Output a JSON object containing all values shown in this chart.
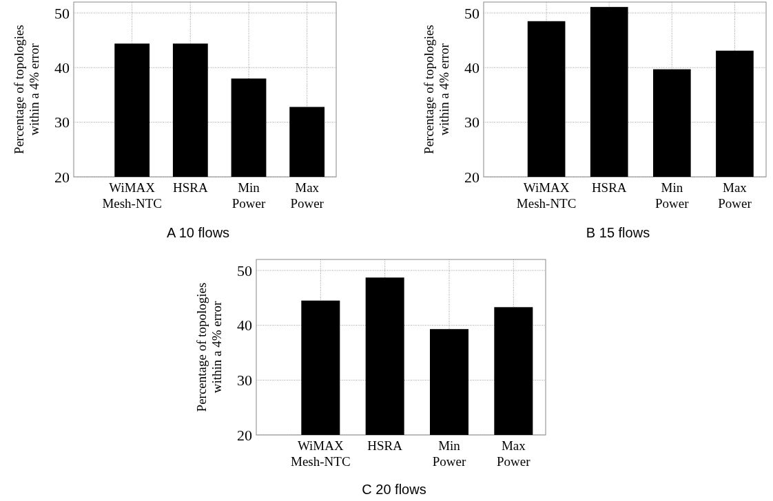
{
  "chart_data": [
    {
      "type": "bar",
      "title": "A  10 flows",
      "ylabel": "Percentage of topologies\nwithin a 4% error",
      "categories": [
        "WiMAX\nMesh-NTC",
        "HSRA",
        "Min\nPower",
        "Max\nPower"
      ],
      "values": [
        44.4,
        44.4,
        38.0,
        32.8
      ],
      "color": "#000000",
      "ylim": [
        20,
        52
      ],
      "yticks": [
        20,
        30,
        40,
        50
      ],
      "grid": true
    },
    {
      "type": "bar",
      "title": "B  15 flows",
      "ylabel": "Percentage of topologies\nwithin a 4% error",
      "categories": [
        "WiMAX\nMesh-NTC",
        "HSRA",
        "Min\nPower",
        "Max\nPower"
      ],
      "values": [
        48.5,
        51.1,
        39.7,
        43.1
      ],
      "color": "#000000",
      "ylim": [
        20,
        52
      ],
      "yticks": [
        20,
        30,
        40,
        50
      ],
      "grid": true
    },
    {
      "type": "bar",
      "title": "C  20 flows",
      "ylabel": "Percentage of topologies\nwithin a 4% error",
      "categories": [
        "WiMAX\nMesh-NTC",
        "HSRA",
        "Min\nPower",
        "Max\nPower"
      ],
      "values": [
        44.5,
        48.7,
        39.3,
        43.3
      ],
      "color": "#000000",
      "ylim": [
        20,
        52
      ],
      "yticks": [
        20,
        30,
        40,
        50
      ],
      "grid": true
    }
  ]
}
